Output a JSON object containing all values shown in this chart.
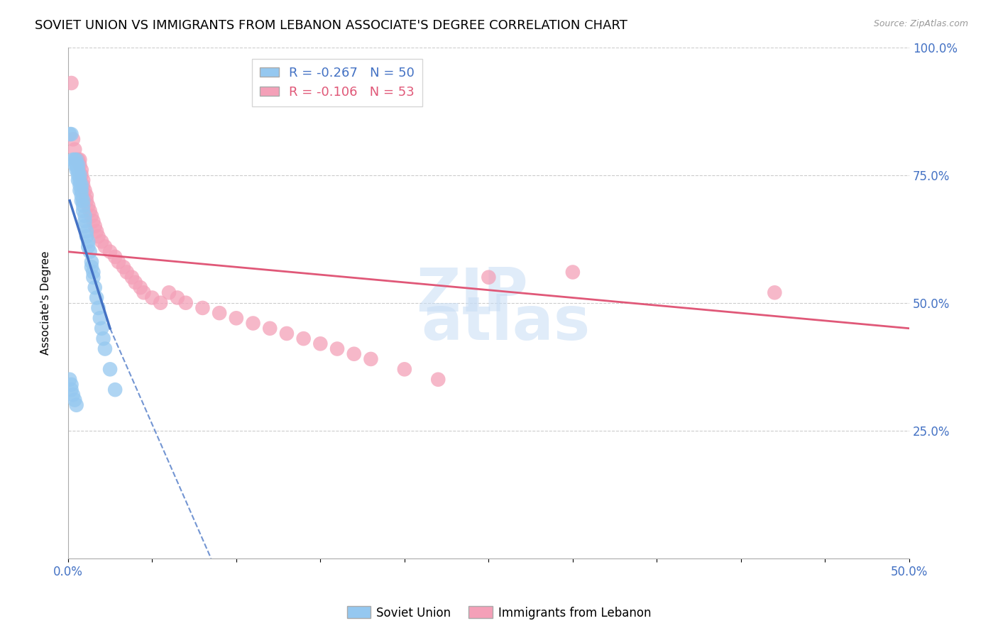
{
  "title": "SOVIET UNION VS IMMIGRANTS FROM LEBANON ASSOCIATE'S DEGREE CORRELATION CHART",
  "source": "Source: ZipAtlas.com",
  "ylabel": "Associate's Degree",
  "xlim": [
    0.0,
    0.5
  ],
  "ylim": [
    0.0,
    1.0
  ],
  "legend_r_blue": "-0.267",
  "legend_n_blue": "50",
  "legend_r_pink": "-0.106",
  "legend_n_pink": "53",
  "blue_color": "#95C8F0",
  "pink_color": "#F4A0B8",
  "blue_line_color": "#4472C4",
  "pink_line_color": "#E05878",
  "watermark_top": "ZIP",
  "watermark_bot": "atlas",
  "title_fontsize": 13,
  "axis_label_fontsize": 11,
  "tick_fontsize": 12,
  "soviet_x": [
    0.001,
    0.002,
    0.003,
    0.004,
    0.004,
    0.005,
    0.005,
    0.005,
    0.006,
    0.006,
    0.006,
    0.006,
    0.007,
    0.007,
    0.007,
    0.007,
    0.008,
    0.008,
    0.008,
    0.008,
    0.009,
    0.009,
    0.009,
    0.01,
    0.01,
    0.01,
    0.011,
    0.011,
    0.012,
    0.012,
    0.013,
    0.014,
    0.014,
    0.015,
    0.015,
    0.016,
    0.017,
    0.018,
    0.019,
    0.02,
    0.021,
    0.022,
    0.025,
    0.028,
    0.001,
    0.002,
    0.002,
    0.003,
    0.004,
    0.005
  ],
  "soviet_y": [
    0.83,
    0.83,
    0.78,
    0.78,
    0.77,
    0.78,
    0.77,
    0.76,
    0.77,
    0.76,
    0.75,
    0.74,
    0.75,
    0.74,
    0.73,
    0.72,
    0.73,
    0.72,
    0.71,
    0.7,
    0.7,
    0.69,
    0.68,
    0.67,
    0.66,
    0.65,
    0.64,
    0.63,
    0.62,
    0.61,
    0.6,
    0.58,
    0.57,
    0.56,
    0.55,
    0.53,
    0.51,
    0.49,
    0.47,
    0.45,
    0.43,
    0.41,
    0.37,
    0.33,
    0.35,
    0.34,
    0.33,
    0.32,
    0.31,
    0.3
  ],
  "lebanon_x": [
    0.002,
    0.003,
    0.004,
    0.005,
    0.006,
    0.007,
    0.007,
    0.008,
    0.008,
    0.009,
    0.009,
    0.01,
    0.011,
    0.011,
    0.012,
    0.013,
    0.014,
    0.015,
    0.016,
    0.017,
    0.018,
    0.02,
    0.022,
    0.025,
    0.028,
    0.03,
    0.033,
    0.035,
    0.038,
    0.04,
    0.043,
    0.045,
    0.05,
    0.055,
    0.06,
    0.065,
    0.07,
    0.08,
    0.09,
    0.1,
    0.11,
    0.12,
    0.13,
    0.14,
    0.15,
    0.16,
    0.17,
    0.18,
    0.2,
    0.22,
    0.25,
    0.3,
    0.42
  ],
  "lebanon_y": [
    0.93,
    0.82,
    0.8,
    0.78,
    0.78,
    0.78,
    0.77,
    0.76,
    0.75,
    0.74,
    0.73,
    0.72,
    0.71,
    0.7,
    0.69,
    0.68,
    0.67,
    0.66,
    0.65,
    0.64,
    0.63,
    0.62,
    0.61,
    0.6,
    0.59,
    0.58,
    0.57,
    0.56,
    0.55,
    0.54,
    0.53,
    0.52,
    0.51,
    0.5,
    0.52,
    0.51,
    0.5,
    0.49,
    0.48,
    0.47,
    0.46,
    0.45,
    0.44,
    0.43,
    0.42,
    0.41,
    0.4,
    0.39,
    0.37,
    0.35,
    0.55,
    0.56,
    0.52
  ],
  "pink_line_x0": 0.0,
  "pink_line_y0": 0.6,
  "pink_line_x1": 0.5,
  "pink_line_y1": 0.45,
  "blue_line_solid_x0": 0.001,
  "blue_line_solid_y0": 0.7,
  "blue_line_solid_x1": 0.025,
  "blue_line_solid_y1": 0.45,
  "blue_line_dash_x0": 0.025,
  "blue_line_dash_y0": 0.45,
  "blue_line_dash_x1": 0.085,
  "blue_line_dash_y1": 0.0
}
